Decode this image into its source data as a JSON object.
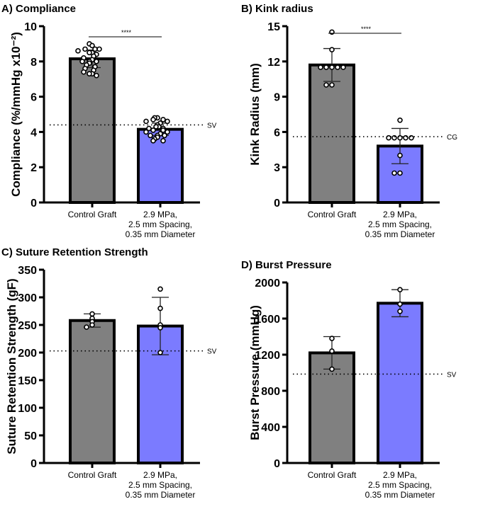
{
  "chart_data": [
    {
      "type": "bar",
      "title": "A) Compliance",
      "ylabel": "Compliance (%/mmHg x10⁻²)",
      "ylim": [
        0,
        10
      ],
      "yticks": [
        0,
        2,
        4,
        6,
        8,
        10
      ],
      "categories": [
        "Control Graft",
        "2.9 MPa,|2.5 mm Spacing,|0.35 mm Diameter"
      ],
      "values": [
        8.15,
        4.15
      ],
      "errors": [
        0.5,
        0.35
      ],
      "points": [
        [
          9.0,
          8.9,
          8.7,
          8.7,
          8.7,
          8.6,
          8.5,
          8.5,
          8.4,
          8.3,
          8.2,
          8.1,
          8.0,
          8.0,
          8.0,
          7.9,
          7.8,
          7.7,
          7.6,
          7.5,
          7.4,
          7.3,
          7.3,
          7.2
        ],
        [
          4.8,
          4.8,
          4.7,
          4.7,
          4.6,
          4.6,
          4.5,
          4.4,
          4.3,
          4.3,
          4.2,
          4.2,
          4.1,
          4.1,
          4.0,
          4.0,
          3.9,
          3.8,
          3.8,
          3.8,
          3.7,
          3.6,
          3.5,
          3.5
        ]
      ],
      "reference": {
        "label": "SV",
        "value": 4.4
      },
      "significance": "****",
      "colors": [
        "#808080",
        "#7b7bff"
      ]
    },
    {
      "type": "bar",
      "title": "B) Kink radius",
      "ylabel": "Kink  Radius (mm)",
      "ylim": [
        0,
        15
      ],
      "yticks": [
        0,
        3,
        6,
        9,
        12,
        15
      ],
      "categories": [
        "Control Graft",
        "2.9 MPa,|2.5 mm Spacing,|0.35 mm Diameter"
      ],
      "values": [
        11.7,
        4.8
      ],
      "errors": [
        1.4,
        1.5
      ],
      "points": [
        [
          14.5,
          13,
          11.5,
          11.5,
          11.5,
          11.5,
          11.5,
          10,
          10
        ],
        [
          7,
          5.5,
          5.5,
          5.5,
          5.5,
          5.5,
          4,
          2.5,
          2.5
        ]
      ],
      "reference": {
        "label": "CG",
        "value": 5.6
      },
      "significance": "****",
      "colors": [
        "#808080",
        "#7b7bff"
      ]
    },
    {
      "type": "bar",
      "title": "C) Suture Retention Strength",
      "ylabel": "Suture Retention Strength (gF)",
      "ylim": [
        0,
        350
      ],
      "yticks": [
        0,
        50,
        100,
        150,
        200,
        250,
        300,
        350
      ],
      "categories": [
        "Control Graft",
        "2.9 MPa,|2.5 mm Spacing,|0.35 mm Diameter"
      ],
      "values": [
        258,
        248
      ],
      "errors": [
        12,
        52
      ],
      "points": [
        [
          270,
          262,
          256,
          250,
          246
        ],
        [
          315,
          280,
          250,
          245,
          200
        ]
      ],
      "reference": {
        "label": "SV",
        "value": 203
      },
      "significance": "",
      "colors": [
        "#808080",
        "#7b7bff"
      ]
    },
    {
      "type": "bar",
      "title": "D) Burst Pressure",
      "ylabel": "Burst Pressure (mmHg)",
      "ylim": [
        0,
        2000
      ],
      "yticks": [
        0,
        400,
        800,
        1200,
        1600,
        2000
      ],
      "categories": [
        "Control Graft",
        "2.9 MPa,|2.5 mm Spacing,|0.35 mm Diameter"
      ],
      "values": [
        1220,
        1770
      ],
      "errors": [
        180,
        150
      ],
      "points": [
        [
          1380,
          1240,
          1040
        ],
        [
          1920,
          1760,
          1680
        ]
      ],
      "reference": {
        "label": "SV",
        "value": 985
      },
      "significance": "",
      "colors": [
        "#808080",
        "#7b7bff"
      ]
    }
  ]
}
